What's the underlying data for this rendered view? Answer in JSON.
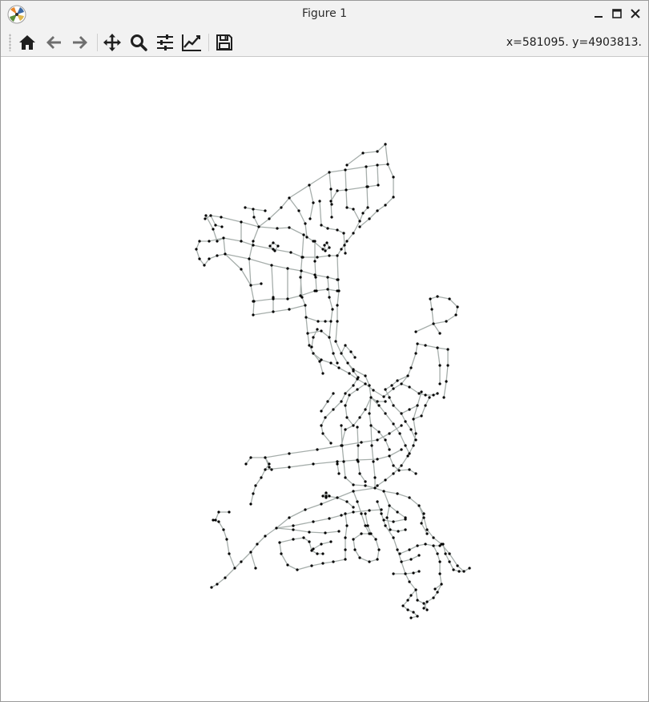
{
  "window": {
    "title": "Figure 1"
  },
  "toolbar": {
    "buttons": [
      {
        "name": "home",
        "icon": "home-icon"
      },
      {
        "name": "back",
        "icon": "arrow-left-icon"
      },
      {
        "name": "forward",
        "icon": "arrow-right-icon"
      },
      {
        "name": "pan",
        "icon": "move-icon"
      },
      {
        "name": "zoom",
        "icon": "magnifier-icon"
      },
      {
        "name": "configure-subplots",
        "icon": "sliders-icon"
      },
      {
        "name": "edit-axis",
        "icon": "line-chart-icon"
      },
      {
        "name": "save",
        "icon": "floppy-disk-icon"
      }
    ],
    "coordinates": "x=581095. y=4903813."
  },
  "colors": {
    "edge": "#a6aeab",
    "node": "#000000",
    "toolbar_icon": "#1f1f1f",
    "disabled_icon": "#6e6e6e"
  }
}
